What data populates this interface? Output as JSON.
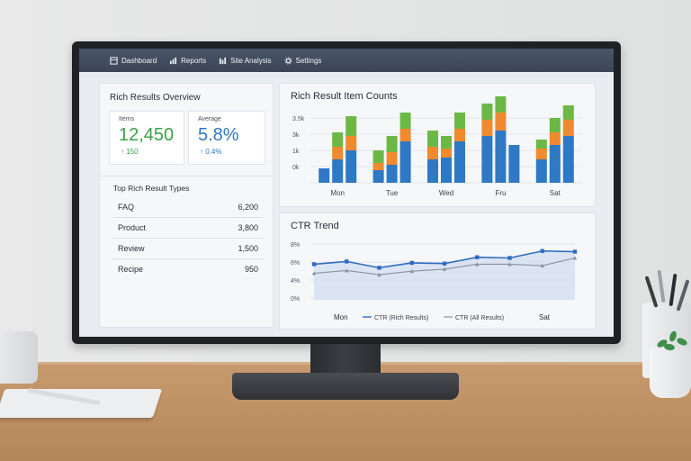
{
  "nav": {
    "items": [
      {
        "label": "Dashboard",
        "icon": "dashboard-icon"
      },
      {
        "label": "Reports",
        "icon": "reports-icon"
      },
      {
        "label": "Site Analysis",
        "icon": "site-analysis-icon"
      },
      {
        "label": "Settings",
        "icon": "gear-icon"
      }
    ]
  },
  "overview": {
    "title": "Rich Results Overview",
    "items": {
      "label": "Items",
      "value": "12,450",
      "delta": "150",
      "color": "#3aa04a"
    },
    "average": {
      "label": "Average",
      "value": "5.8%",
      "delta": "0.4%",
      "color": "#2f78c4"
    },
    "types_title": "Top Rich Result Types",
    "types": [
      {
        "name": "FAQ",
        "count": "6,200"
      },
      {
        "name": "Product",
        "count": "3,800"
      },
      {
        "name": "Review",
        "count": "1,500"
      },
      {
        "name": "Recipe",
        "count": "950"
      }
    ]
  },
  "item_counts": {
    "title": "Rich Result Item Counts",
    "colors": [
      "#2f78c4",
      "#ef8a2f",
      "#6cb847"
    ],
    "chart_data": {
      "type": "bar",
      "stacked": true,
      "y_tick_labels": [
        "3.5k",
        "3k",
        "1k",
        "0k"
      ],
      "x_tick_labels": [
        "Mon",
        "Tue",
        "Wed",
        "Fru",
        "Sat"
      ],
      "ylim": [
        0,
        3600
      ],
      "groups": [
        {
          "bars": [
            [
              800,
              0,
              0
            ],
            [
              1300,
              700,
              800
            ],
            [
              1800,
              800,
              1100
            ]
          ]
        },
        {
          "bars": [
            [
              700,
              400,
              700
            ],
            [
              1000,
              700,
              900
            ],
            [
              2300,
              700,
              900
            ]
          ]
        },
        {
          "bars": [
            [
              1300,
              700,
              900
            ],
            [
              1400,
              500,
              700
            ],
            [
              2300,
              700,
              900
            ]
          ]
        },
        {
          "bars": [
            [
              2600,
              900,
              900
            ],
            [
              2900,
              1000,
              900
            ],
            [
              2100,
              0,
              0
            ]
          ]
        },
        {
          "bars": [
            [
              1300,
              600,
              500
            ],
            [
              2100,
              700,
              800
            ],
            [
              2600,
              900,
              800
            ]
          ]
        }
      ]
    }
  },
  "ctr": {
    "title": "CTR Trend",
    "legend": [
      "CTR (Rich Results)",
      "CTR (All Results)"
    ],
    "colors": [
      "#2f6cc0",
      "#8a939c"
    ],
    "chart_data": {
      "type": "line",
      "y_tick_labels": [
        "8%",
        "6%",
        "4%",
        "0%"
      ],
      "x_tick_labels": [
        "Mon",
        "Sat"
      ],
      "series": [
        {
          "name": "CTR (Rich Results)",
          "values": [
            5.1,
            5.5,
            4.6,
            5.3,
            5.2,
            6.1,
            6.0,
            7.0,
            6.9
          ]
        },
        {
          "name": "CTR (All Results)",
          "values": [
            3.8,
            4.2,
            3.6,
            4.1,
            4.4,
            5.1,
            5.1,
            4.9,
            6.0
          ]
        }
      ]
    }
  }
}
